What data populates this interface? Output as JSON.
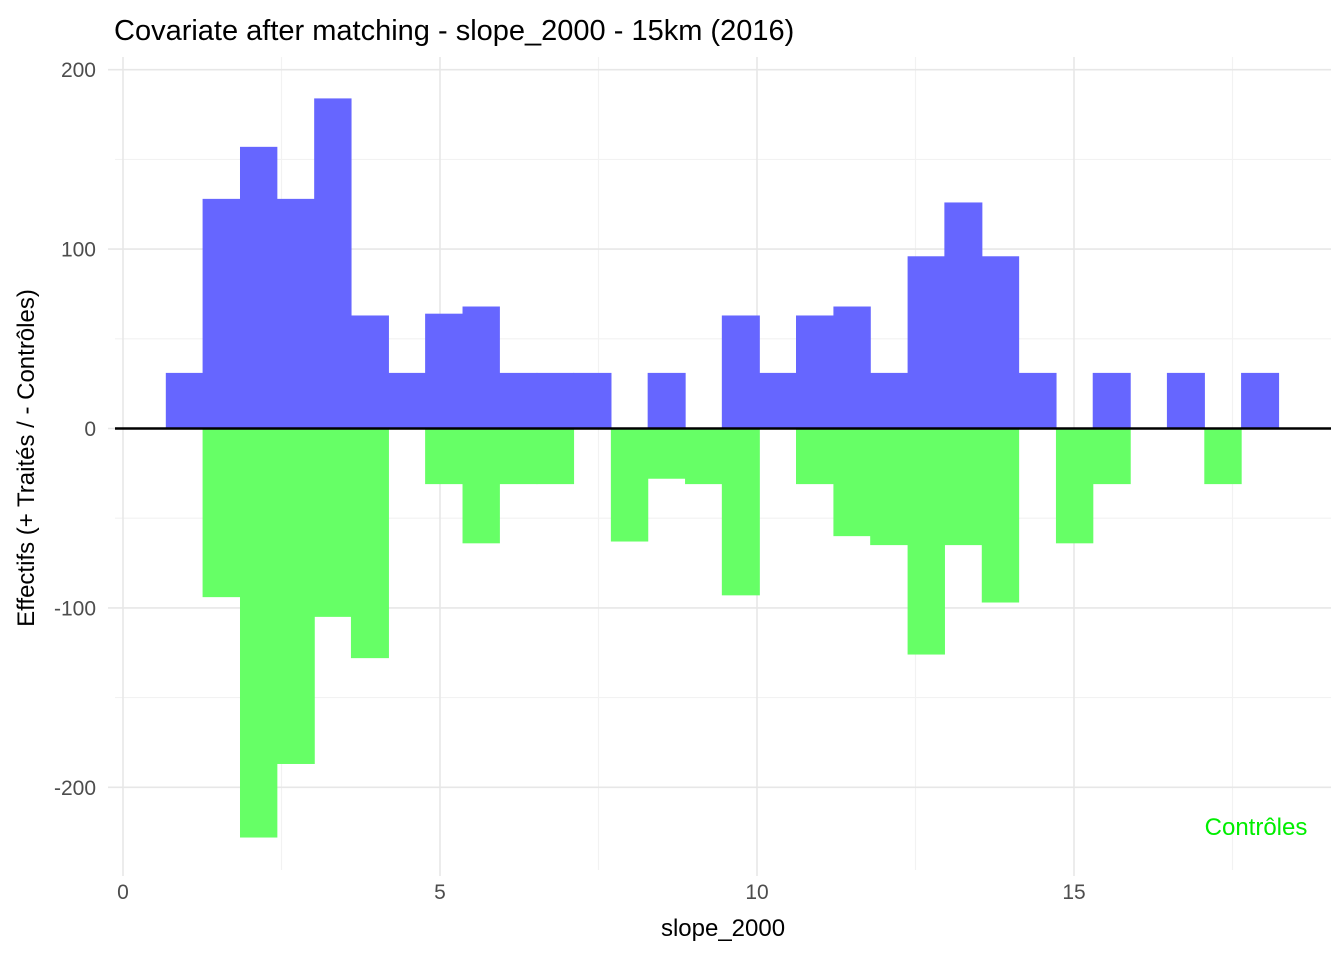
{
  "figure": {
    "title": "Covariate after matching - slope_2000 - 15km (2016)",
    "x_axis_title": "slope_2000",
    "y_axis_title": "Effectifs (+ Traités / - Contrôles)",
    "annotation": "Contrôles"
  },
  "colors": {
    "treated_fill": "#6666FF",
    "controls_fill": "#66FF66",
    "annotation_green": "#00EE00",
    "axis_text": "#4D4D4D",
    "grid_major": "#E7E7E7",
    "grid_minor": "#F2F2F2",
    "zero_line": "#000000",
    "background": "#FFFFFF"
  },
  "chart_data": {
    "type": "bar",
    "subtype": "mirrored-histogram",
    "title": "Covariate after matching - slope_2000 - 15km (2016)",
    "xlabel": "slope_2000",
    "ylabel": "Effectifs (+ Traités / - Contrôles)",
    "annotation": "Contrôles",
    "legend_position": "none",
    "grid": true,
    "xlim": [
      -0.15,
      19.05
    ],
    "ylim": [
      -246,
      207
    ],
    "x_ticks": [
      0,
      5,
      10,
      15
    ],
    "x_tick_labels": [
      "0",
      "5",
      "10",
      "15"
    ],
    "x_minor_gridlines": [
      2.5,
      7.5,
      12.5,
      17.5
    ],
    "y_ticks": [
      200,
      100,
      0,
      -100,
      -200
    ],
    "y_tick_labels": [
      "200",
      "100",
      "0",
      "-100",
      "-200"
    ],
    "y_minor_gridlines": [
      150,
      50,
      -50,
      -150
    ],
    "binwidth": 0.585,
    "series": [
      {
        "name": "Traités",
        "sign": "positive",
        "color": "#6666FF"
      },
      {
        "name": "Contrôles",
        "sign": "negative",
        "color": "#66FF66"
      }
    ],
    "bins": [
      {
        "x0": 0.68,
        "x1": 1.26,
        "treated": 31,
        "controls": 0
      },
      {
        "x0": 1.26,
        "x1": 1.85,
        "treated": 128,
        "controls": -94
      },
      {
        "x0": 1.85,
        "x1": 2.43,
        "treated": 157,
        "controls": -228
      },
      {
        "x0": 2.43,
        "x1": 3.02,
        "treated": 128,
        "controls": -187
      },
      {
        "x0": 3.02,
        "x1": 3.6,
        "treated": 184,
        "controls": -105
      },
      {
        "x0": 3.6,
        "x1": 4.19,
        "treated": 63,
        "controls": -128
      },
      {
        "x0": 4.19,
        "x1": 4.77,
        "treated": 31,
        "controls": 0
      },
      {
        "x0": 4.77,
        "x1": 5.36,
        "treated": 64,
        "controls": -31
      },
      {
        "x0": 5.36,
        "x1": 5.94,
        "treated": 68,
        "controls": -64
      },
      {
        "x0": 5.94,
        "x1": 6.53,
        "treated": 31,
        "controls": -31
      },
      {
        "x0": 6.53,
        "x1": 7.11,
        "treated": 31,
        "controls": -31
      },
      {
        "x0": 7.11,
        "x1": 7.7,
        "treated": 31,
        "controls": 0
      },
      {
        "x0": 7.7,
        "x1": 8.28,
        "treated": 0,
        "controls": -63
      },
      {
        "x0": 8.28,
        "x1": 8.87,
        "treated": 31,
        "controls": -28
      },
      {
        "x0": 8.87,
        "x1": 9.45,
        "treated": 0,
        "controls": -31
      },
      {
        "x0": 9.45,
        "x1": 10.04,
        "treated": 63,
        "controls": -93
      },
      {
        "x0": 10.04,
        "x1": 10.62,
        "treated": 31,
        "controls": 0
      },
      {
        "x0": 10.62,
        "x1": 11.21,
        "treated": 63,
        "controls": -31
      },
      {
        "x0": 11.21,
        "x1": 11.79,
        "treated": 68,
        "controls": -60
      },
      {
        "x0": 11.79,
        "x1": 12.38,
        "treated": 31,
        "controls": -65
      },
      {
        "x0": 12.38,
        "x1": 12.96,
        "treated": 96,
        "controls": -126
      },
      {
        "x0": 12.96,
        "x1": 13.55,
        "treated": 126,
        "controls": -65
      },
      {
        "x0": 13.55,
        "x1": 14.13,
        "treated": 96,
        "controls": -97
      },
      {
        "x0": 14.13,
        "x1": 14.72,
        "treated": 31,
        "controls": 0
      },
      {
        "x0": 14.72,
        "x1": 15.3,
        "treated": 0,
        "controls": -64
      },
      {
        "x0": 15.3,
        "x1": 15.89,
        "treated": 31,
        "controls": -31
      },
      {
        "x0": 15.89,
        "x1": 16.47,
        "treated": 0,
        "controls": 0
      },
      {
        "x0": 16.47,
        "x1": 17.06,
        "treated": 31,
        "controls": 0
      },
      {
        "x0": 17.06,
        "x1": 17.64,
        "treated": 0,
        "controls": -31
      },
      {
        "x0": 17.64,
        "x1": 18.23,
        "treated": 31,
        "controls": 0
      }
    ]
  }
}
